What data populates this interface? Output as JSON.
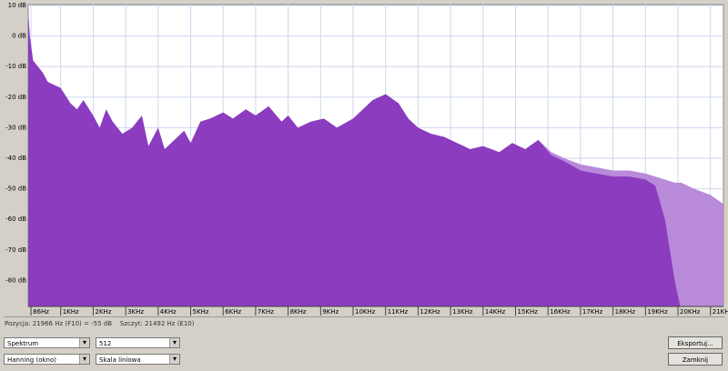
{
  "chart_data": {
    "type": "area",
    "x": [
      0,
      50,
      150,
      300,
      450,
      600,
      800,
      1000,
      1300,
      1500,
      1700,
      2000,
      2200,
      2400,
      2600,
      2900,
      3200,
      3500,
      3700,
      4000,
      4200,
      4500,
      4800,
      5000,
      5300,
      5600,
      6000,
      6300,
      6700,
      7000,
      7400,
      7800,
      8000,
      8300,
      8700,
      9100,
      9500,
      10000,
      10300,
      10600,
      11000,
      11400,
      11700,
      12000,
      12400,
      12800,
      13200,
      13600,
      14000,
      14500,
      14900,
      15300,
      15700,
      16100,
      16500,
      17000,
      17500,
      18000,
      18500,
      19000,
      19300,
      19600,
      19900,
      20100,
      20500,
      21000,
      21400
    ],
    "series": [
      {
        "color": "#b98ad9",
        "values": [
          null,
          null,
          null,
          null,
          null,
          null,
          null,
          null,
          null,
          null,
          null,
          null,
          null,
          null,
          null,
          null,
          null,
          null,
          null,
          null,
          null,
          null,
          null,
          null,
          null,
          null,
          null,
          null,
          null,
          null,
          null,
          null,
          null,
          null,
          null,
          null,
          null,
          null,
          null,
          null,
          null,
          null,
          null,
          null,
          null,
          null,
          null,
          null,
          null,
          null,
          null,
          null,
          -34,
          -38,
          -40,
          -42,
          -43,
          -44,
          -44,
          -45,
          -46,
          -47,
          -48,
          -48,
          -50,
          -52,
          -55
        ]
      },
      {
        "color": "#8b3cbf",
        "values": [
          8,
          0,
          -8,
          -10,
          -12,
          -15,
          -16,
          -17,
          -22,
          -24,
          -21,
          -26,
          -30,
          -24,
          -28,
          -32,
          -30,
          -26,
          -36,
          -30,
          -37,
          -34,
          -31,
          -35,
          -28,
          -27,
          -25,
          -27,
          -24,
          -26,
          -23,
          -28,
          -26,
          -30,
          -28,
          -27,
          -30,
          -27,
          -24,
          -21,
          -19,
          -22,
          -27,
          -30,
          -32,
          -33,
          -35,
          -37,
          -36,
          -38,
          -35,
          -37,
          -34,
          -39,
          -41,
          -44,
          -45,
          -46,
          -46,
          -47,
          -49,
          -60,
          -80,
          -90,
          null,
          null,
          null
        ]
      }
    ],
    "xlim": [
      0,
      21400
    ],
    "ylim": [
      -88.5,
      10.3
    ],
    "xticks": [
      {
        "value": 86,
        "label": "86Hz"
      },
      {
        "value": 1000,
        "label": "1KHz"
      },
      {
        "value": 2000,
        "label": "2KHz"
      },
      {
        "value": 3000,
        "label": "3KHz"
      },
      {
        "value": 4000,
        "label": "4KHz"
      },
      {
        "value": 5000,
        "label": "5KHz"
      },
      {
        "value": 6000,
        "label": "6KHz"
      },
      {
        "value": 7000,
        "label": "7KHz"
      },
      {
        "value": 8000,
        "label": "8KHz"
      },
      {
        "value": 9000,
        "label": "9KHz"
      },
      {
        "value": 10000,
        "label": "10KHz"
      },
      {
        "value": 11000,
        "label": "11KHz"
      },
      {
        "value": 12000,
        "label": "12KHz"
      },
      {
        "value": 13000,
        "label": "13KHz"
      },
      {
        "value": 14000,
        "label": "14KHz"
      },
      {
        "value": 15000,
        "label": "15KHz"
      },
      {
        "value": 16000,
        "label": "16KHz"
      },
      {
        "value": 17000,
        "label": "17KHz"
      },
      {
        "value": 18000,
        "label": "18KHz"
      },
      {
        "value": 19000,
        "label": "19KHz"
      },
      {
        "value": 20000,
        "label": "20KHz"
      },
      {
        "value": 21000,
        "label": "21KHz"
      }
    ],
    "yticks": [
      {
        "value": 10,
        "label": "10 dB"
      },
      {
        "value": 0,
        "label": "0 dB"
      },
      {
        "value": -10,
        "label": "-10 dB"
      },
      {
        "value": -20,
        "label": "-20 dB"
      },
      {
        "value": -30,
        "label": "-30 dB"
      },
      {
        "value": -40,
        "label": "-40 dB"
      },
      {
        "value": -50,
        "label": "-50 dB"
      },
      {
        "value": -60,
        "label": "-60 dB"
      },
      {
        "value": -70,
        "label": "-70 dB"
      },
      {
        "value": -80,
        "label": "-80 dB"
      }
    ],
    "grid": true
  },
  "status": {
    "position": "Pozycja: 21966 Hz (F10) = -55 dB",
    "peak": "Szczyt: 21492 Hz (E10)"
  },
  "controls": {
    "algorithm": "Spektrum",
    "size": "512",
    "window": "Hanning (okno)",
    "axis": "Skala liniowa",
    "export": "Eksportuj...",
    "close": "Zamknij"
  }
}
